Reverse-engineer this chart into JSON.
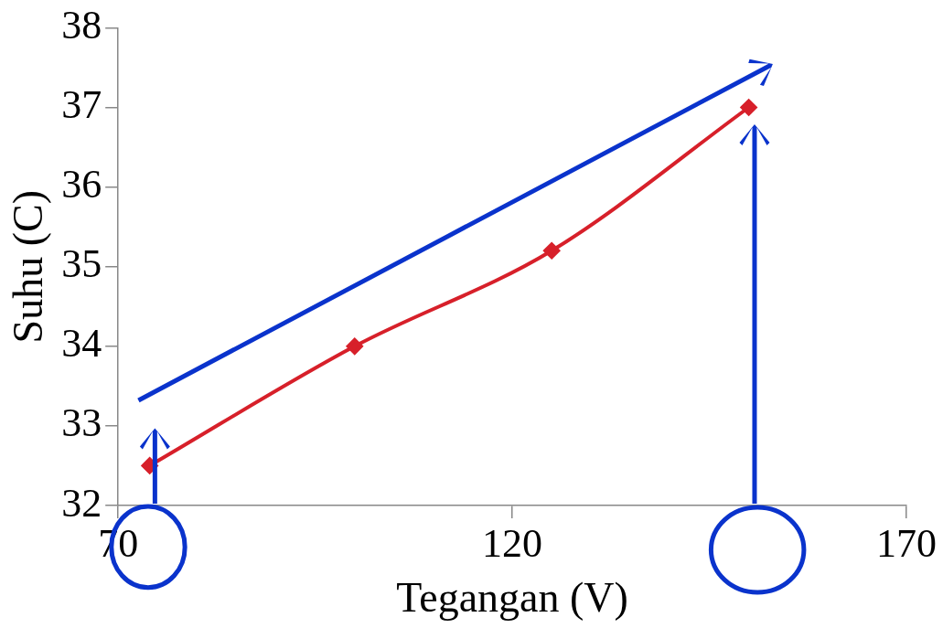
{
  "chart_data": {
    "type": "line",
    "xlabel": "Tegangan (V)",
    "ylabel": "Suhu (C)",
    "x": [
      74,
      100,
      125,
      150
    ],
    "series": [
      {
        "color": "#d7202a",
        "values": [
          32.5,
          34,
          35.2,
          37
        ]
      }
    ],
    "xlim": [
      70,
      170
    ],
    "xticks": [
      70,
      120,
      170
    ],
    "ylim": [
      32,
      38
    ],
    "yticks": [
      32,
      33,
      34,
      35,
      36,
      37,
      38
    ],
    "marker": "diamond",
    "line_style": "solid",
    "legend": false
  }
}
